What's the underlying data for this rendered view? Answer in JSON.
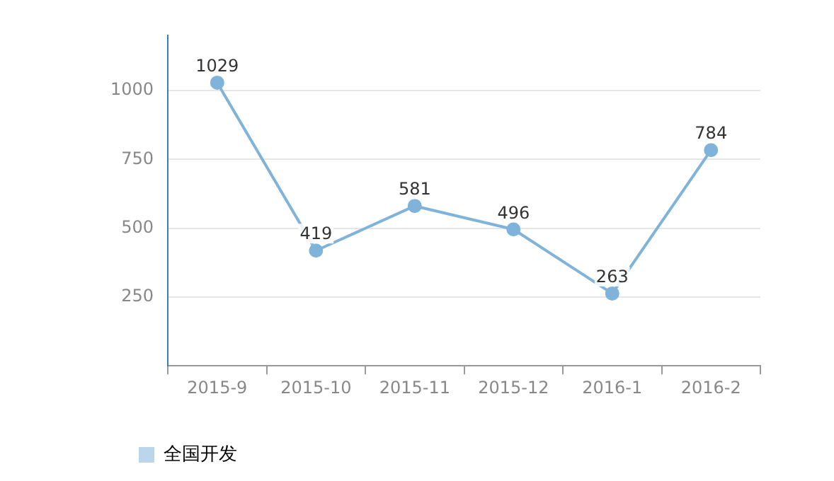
{
  "chart_data": {
    "type": "line",
    "categories": [
      "2015-9",
      "2015-10",
      "2015-11",
      "2015-12",
      "2016-1",
      "2016-2"
    ],
    "series": [
      {
        "name": "全国开发",
        "color": "#7fb3da",
        "values": [
          1029,
          419,
          581,
          496,
          263,
          784
        ]
      }
    ],
    "ylim": [
      0,
      1200
    ],
    "yticks": [
      {
        "value": 0,
        "label": null
      },
      250,
      500,
      750,
      1000
    ],
    "grid": "y",
    "legend": "bottom left",
    "marker": "circle",
    "data_labels": true
  }
}
